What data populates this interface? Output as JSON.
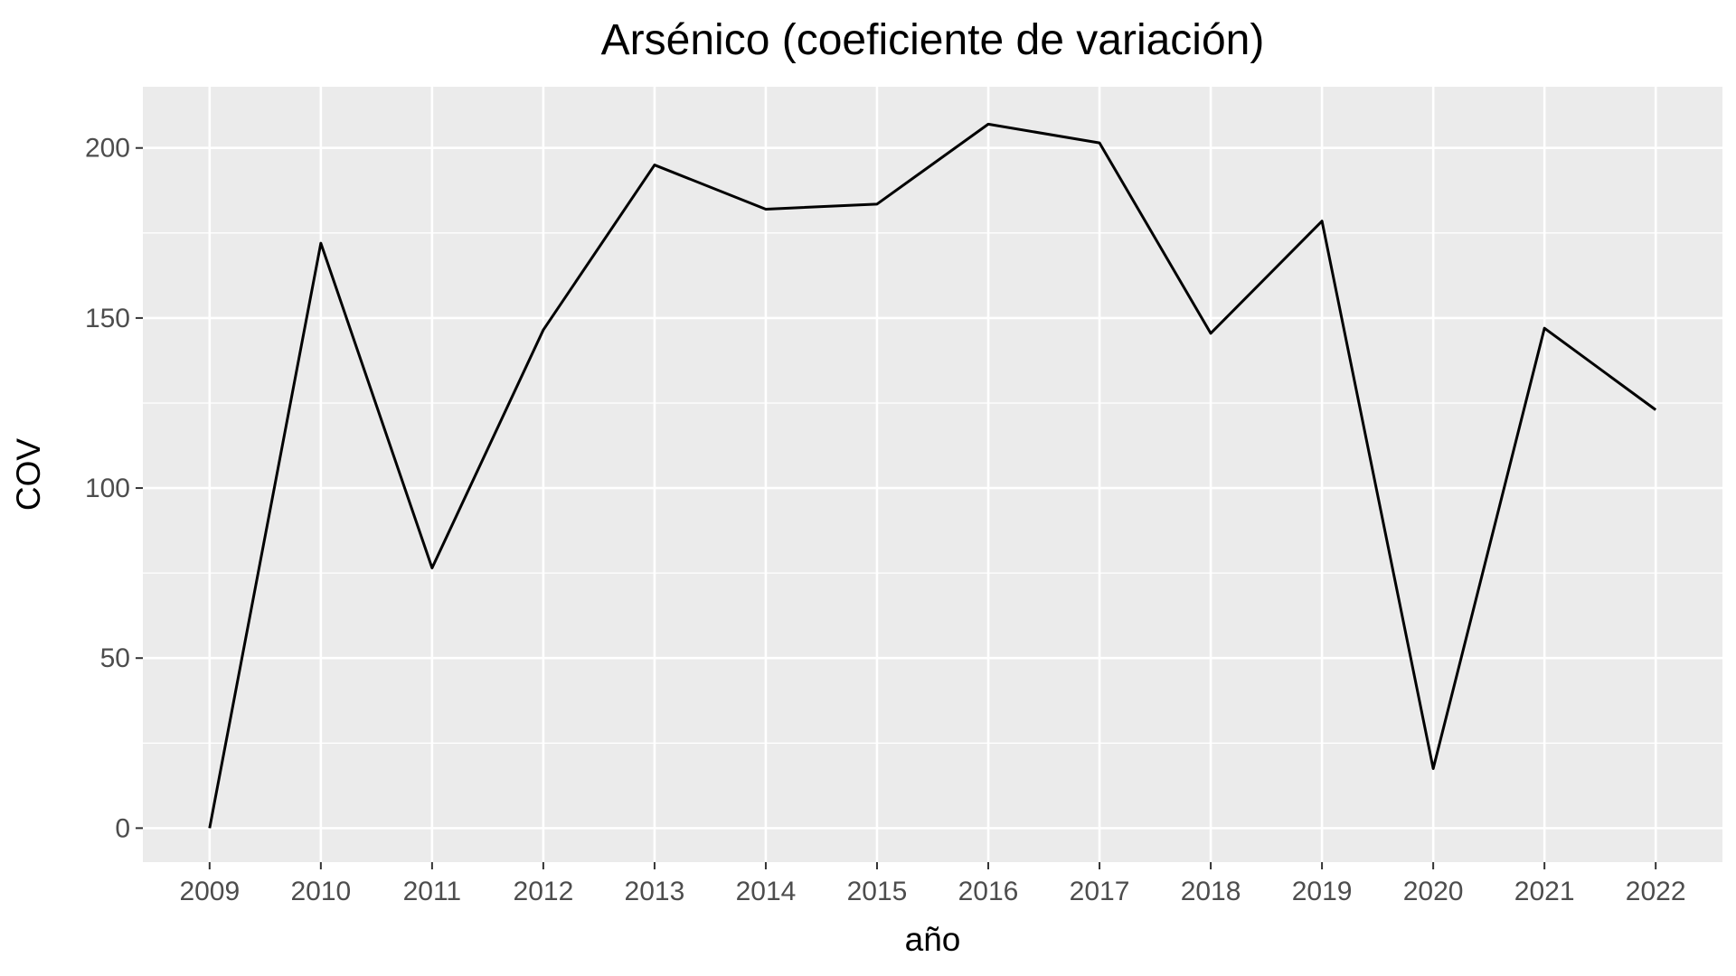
{
  "chart_data": {
    "type": "line",
    "title": "Arsénico (coeficiente de variación)",
    "xlabel": "año",
    "ylabel": "COV",
    "x": [
      "2009",
      "2010",
      "2011",
      "2012",
      "2013",
      "2014",
      "2015",
      "2016",
      "2017",
      "2018",
      "2019",
      "2020",
      "2021",
      "2022"
    ],
    "series": [
      {
        "values": [
          0,
          172,
          76.5,
          146.5,
          195,
          182,
          183.5,
          207,
          201.5,
          145.5,
          178.5,
          17.5,
          147,
          123
        ]
      }
    ],
    "y_ticks": [
      "0",
      "50",
      "100",
      "150",
      "200"
    ],
    "ylim": [
      -10,
      218
    ],
    "grid": true,
    "panel_color": "#ebebeb",
    "grid_color": "#ffffff",
    "line_color": "#000000"
  }
}
